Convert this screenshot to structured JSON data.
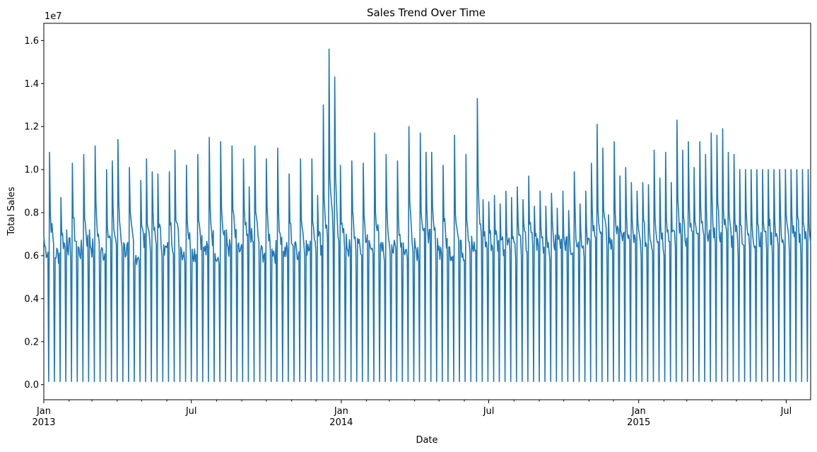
{
  "chart_data": {
    "type": "line",
    "title": "Sales Trend Over Time",
    "xlabel": "Date",
    "ylabel": "Total Sales",
    "y_scale_label": "1e7",
    "xlim": [
      "2013-01-01",
      "2015-07-31"
    ],
    "ylim": [
      -700000,
      16800000
    ],
    "y_ticks": [
      0,
      2000000,
      4000000,
      6000000,
      8000000,
      10000000,
      12000000,
      14000000,
      16000000
    ],
    "y_tick_labels": [
      "0.0",
      "0.2",
      "0.4",
      "0.6",
      "0.8",
      "1.0",
      "1.2",
      "1.4",
      "1.6"
    ],
    "x_major_ticks": [
      {
        "date": "2013-01-01",
        "label": "Jan",
        "sublabel": "2013"
      },
      {
        "date": "2013-07-01",
        "label": "Jul",
        "sublabel": ""
      },
      {
        "date": "2014-01-01",
        "label": "Jan",
        "sublabel": "2014"
      },
      {
        "date": "2014-07-01",
        "label": "Jul",
        "sublabel": ""
      },
      {
        "date": "2015-01-01",
        "label": "Jan",
        "sublabel": "2015"
      },
      {
        "date": "2015-07-01",
        "label": "Jul",
        "sublabel": ""
      }
    ],
    "grid": false,
    "series": [
      {
        "color": "#1f77b4",
        "values_description_period": "weekly",
        "weekly_peaks": [
          6900000,
          10800000,
          5900000,
          8700000,
          7200000,
          10300000,
          6400000,
          10700000,
          7200000,
          11100000,
          6200000,
          10000000,
          10400000,
          11400000,
          6600000,
          10100000,
          5700000,
          9500000,
          10500000,
          9900000,
          9800000,
          6500000,
          9900000,
          10900000,
          6400000,
          10200000,
          6300000,
          10700000,
          6400000,
          11500000,
          6100000,
          11300000,
          7200000,
          11100000,
          6500000,
          10500000,
          9200000,
          11100000,
          6200000,
          10500000,
          6300000,
          11000000,
          6200000,
          9800000,
          6600000,
          10500000,
          6700000,
          10500000,
          8800000,
          13000000,
          15600000,
          14300000,
          10200000,
          7000000,
          10400000,
          6800000,
          10300000,
          6700000,
          11700000,
          6500000,
          10700000,
          6500000,
          10400000,
          6600000,
          12000000,
          6800000,
          11700000,
          10800000,
          10800000,
          6800000,
          10200000,
          6400000,
          11600000,
          6700000,
          10700000,
          6900000,
          13300000,
          8600000,
          8500000,
          8800000,
          8400000,
          9000000,
          8700000,
          9200000,
          8600000,
          9700000,
          8300000,
          9000000,
          8300000,
          8900000,
          8200000,
          9000000,
          8100000,
          9900000,
          8400000,
          9000000,
          10300000,
          12100000,
          11000000,
          7900000,
          11300000,
          9700000,
          10100000,
          9400000,
          9000000,
          9400000,
          9300000,
          10900000,
          9600000,
          10800000,
          9400000,
          12300000,
          10900000,
          11300000,
          10100000,
          11300000,
          10700000,
          11700000,
          11600000,
          11900000,
          10800000,
          10700000,
          10000000
        ],
        "closed_day_value": 150000,
        "weekday_level": [
          5500000,
          6800000
        ]
      }
    ]
  }
}
